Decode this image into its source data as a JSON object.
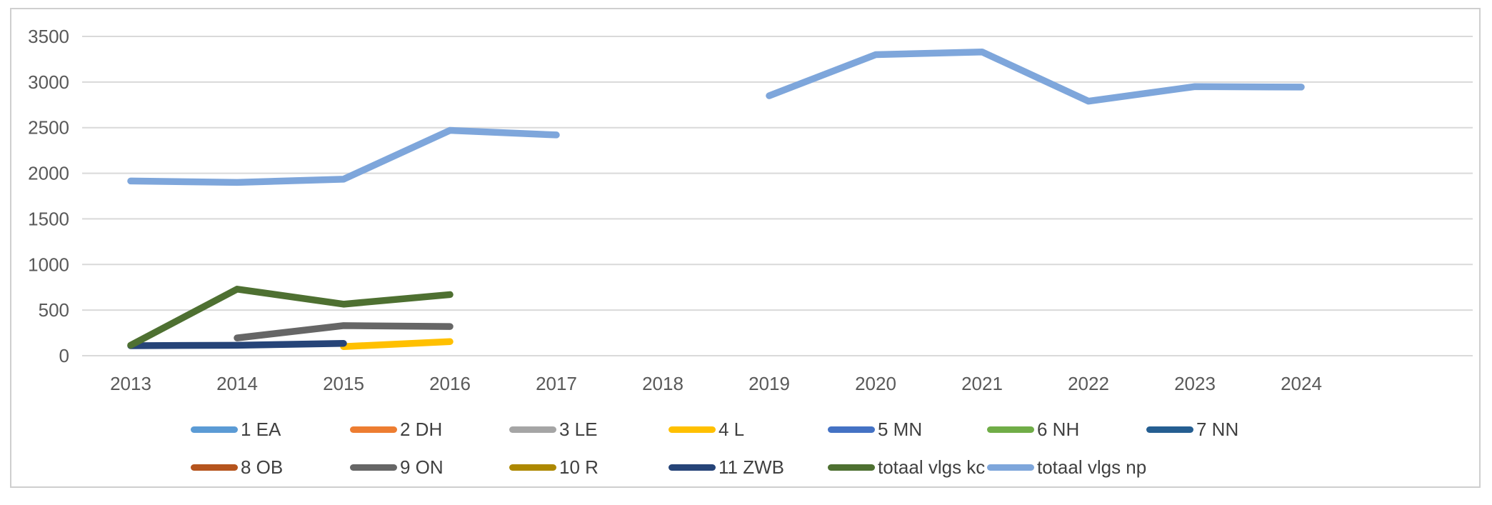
{
  "chart_data": {
    "type": "line",
    "title": "",
    "xlabel": "",
    "ylabel": "",
    "x": [
      "2013",
      "2014",
      "2015",
      "2016",
      "2017",
      "2018",
      "2019",
      "2020",
      "2021",
      "2022",
      "2023",
      "2024"
    ],
    "ylim": [
      0,
      3500
    ],
    "ytick_step": 500,
    "yticks": [
      "0",
      "500",
      "1000",
      "1500",
      "2000",
      "2500",
      "3000",
      "3500"
    ],
    "grid": true,
    "gridline_color": "#D9D9D9",
    "axis_text_color": "#595959",
    "legend_position": "bottom",
    "legend_rows": [
      7,
      6
    ],
    "series": [
      {
        "name": "1 EA",
        "color": "#5B9BD5",
        "values": [
          null,
          null,
          null,
          null,
          null,
          null,
          null,
          null,
          null,
          null,
          null,
          null
        ]
      },
      {
        "name": "2 DH",
        "color": "#ED7D31",
        "values": [
          null,
          null,
          null,
          null,
          null,
          null,
          null,
          null,
          null,
          null,
          null,
          null
        ]
      },
      {
        "name": "3 LE",
        "color": "#A5A5A5",
        "values": [
          null,
          null,
          null,
          null,
          null,
          null,
          null,
          null,
          null,
          null,
          null,
          null
        ]
      },
      {
        "name": "4 L",
        "color": "#FFC000",
        "values": [
          null,
          null,
          100,
          155,
          null,
          null,
          null,
          null,
          null,
          null,
          null,
          null
        ]
      },
      {
        "name": "5 MN",
        "color": "#4472C4",
        "values": [
          null,
          null,
          null,
          null,
          null,
          null,
          null,
          null,
          null,
          null,
          null,
          null
        ]
      },
      {
        "name": "6 NH",
        "color": "#70AD47",
        "values": [
          null,
          null,
          null,
          null,
          null,
          null,
          null,
          null,
          null,
          null,
          null,
          null
        ]
      },
      {
        "name": "7 NN",
        "color": "#255E91",
        "values": [
          null,
          null,
          null,
          null,
          null,
          null,
          null,
          null,
          null,
          null,
          null,
          null
        ]
      },
      {
        "name": "8 OB",
        "color": "#B5541D",
        "values": [
          null,
          null,
          null,
          null,
          null,
          null,
          null,
          null,
          null,
          null,
          null,
          null
        ]
      },
      {
        "name": "9 ON",
        "color": "#666666",
        "values": [
          null,
          195,
          330,
          320,
          null,
          null,
          null,
          null,
          null,
          null,
          null,
          null
        ]
      },
      {
        "name": "10 R",
        "color": "#AD8800",
        "values": [
          null,
          null,
          null,
          null,
          null,
          null,
          null,
          null,
          null,
          null,
          null,
          null
        ]
      },
      {
        "name": "11 ZWB",
        "color": "#264478",
        "values": [
          110,
          115,
          135,
          null,
          null,
          null,
          null,
          null,
          null,
          null,
          null,
          null
        ]
      },
      {
        "name": "totaal vlgs kc",
        "color": "#4E7031",
        "values": [
          115,
          730,
          565,
          670,
          null,
          null,
          null,
          null,
          null,
          null,
          null,
          null
        ]
      },
      {
        "name": "totaal vlgs np",
        "color": "#7EA6DB",
        "values": [
          1915,
          1900,
          1935,
          2470,
          2420,
          null,
          2850,
          3300,
          3330,
          2790,
          2950,
          2945
        ]
      }
    ]
  }
}
